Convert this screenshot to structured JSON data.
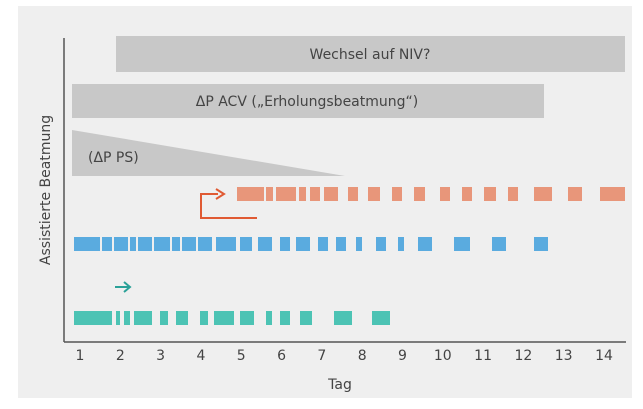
{
  "title_bars": [
    "Wechsel auf NIV?",
    "ΔP ACV („Erholungsbeatmung“)"
  ],
  "wedge_label": "(ΔP PS)",
  "y_label": "Assistierte Beatmung",
  "x_label": "Tag",
  "x_ticks": [
    1,
    2,
    3,
    4,
    5,
    6,
    7,
    8,
    9,
    10,
    11,
    12,
    13,
    14
  ]
}
